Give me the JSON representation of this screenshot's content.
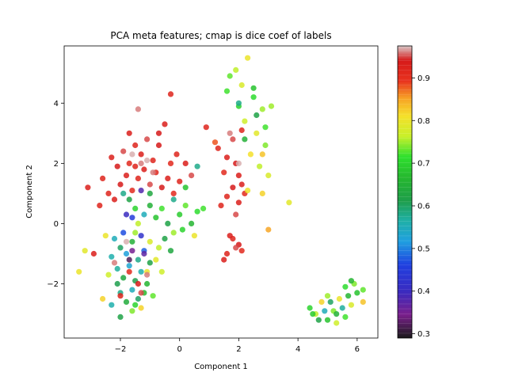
{
  "chart_data": {
    "type": "scatter",
    "title": "PCA meta features; cmap is dice coef of labels",
    "xlabel": "Component 1",
    "ylabel": "Component 2",
    "xlim": [
      -3.9,
      6.7
    ],
    "ylim": [
      -3.8,
      5.9
    ],
    "xticks": [
      -2,
      0,
      2,
      4,
      6
    ],
    "yticks": [
      -2,
      0,
      2,
      4
    ],
    "colorbar": {
      "range": [
        0.29,
        0.975
      ],
      "ticks": [
        "0.3",
        "0.4",
        "0.5",
        "0.6",
        "0.7",
        "0.8",
        "0.9"
      ],
      "tick_values": [
        0.3,
        0.4,
        0.5,
        0.6,
        0.7,
        0.8,
        0.9
      ],
      "colormap": "nipy_spectral-like"
    },
    "points": [
      [
        -2.6,
        1.5,
        0.92
      ],
      [
        -2.3,
        2.2,
        0.93
      ],
      [
        -2.1,
        1.9,
        0.94
      ],
      [
        -1.9,
        2.4,
        0.95
      ],
      [
        -1.7,
        2.0,
        0.91
      ],
      [
        -1.5,
        2.6,
        0.92
      ],
      [
        -1.3,
        2.3,
        0.93
      ],
      [
        -1.1,
        2.8,
        0.95
      ],
      [
        -0.9,
        2.1,
        0.92
      ],
      [
        -0.7,
        2.6,
        0.94
      ],
      [
        -0.5,
        3.3,
        0.93
      ],
      [
        -0.3,
        2.0,
        0.91
      ],
      [
        -0.1,
        2.3,
        0.92
      ],
      [
        0.2,
        2.0,
        0.93
      ],
      [
        0.4,
        1.6,
        0.95
      ],
      [
        -2.4,
        1.0,
        0.92
      ],
      [
        -2.0,
        1.3,
        0.94
      ],
      [
        -1.8,
        1.6,
        0.93
      ],
      [
        -1.6,
        1.1,
        0.91
      ],
      [
        -1.4,
        1.5,
        0.92
      ],
      [
        -1.2,
        1.8,
        0.93
      ],
      [
        -1.0,
        1.3,
        0.95
      ],
      [
        -0.8,
        1.7,
        0.92
      ],
      [
        -0.6,
        1.2,
        0.94
      ],
      [
        -0.4,
        1.5,
        0.93
      ],
      [
        -0.2,
        1.0,
        0.91
      ],
      [
        0.0,
        1.4,
        0.92
      ],
      [
        -2.7,
        0.6,
        0.92
      ],
      [
        -2.2,
        0.8,
        0.93
      ],
      [
        -1.5,
        1.9,
        0.92
      ],
      [
        -1.3,
        2.0,
        0.96
      ],
      [
        -1.1,
        2.1,
        0.97
      ],
      [
        -0.9,
        1.7,
        0.96
      ],
      [
        -1.6,
        2.3,
        0.97
      ],
      [
        -0.3,
        4.3,
        0.92
      ],
      [
        -1.4,
        3.8,
        0.96
      ],
      [
        -0.7,
        3.0,
        0.94
      ],
      [
        -1.7,
        3.0,
        0.93
      ],
      [
        0.9,
        3.2,
        0.92
      ],
      [
        -3.1,
        1.2,
        0.93
      ],
      [
        -1.9,
        1.0,
        0.58
      ],
      [
        -1.7,
        0.8,
        0.62
      ],
      [
        -1.5,
        0.5,
        0.7
      ],
      [
        -1.2,
        0.3,
        0.55
      ],
      [
        -1.0,
        0.6,
        0.65
      ],
      [
        -0.8,
        0.2,
        0.68
      ],
      [
        -0.6,
        0.5,
        0.72
      ],
      [
        -0.4,
        0.0,
        0.62
      ],
      [
        -0.2,
        0.8,
        0.58
      ],
      [
        0.0,
        0.3,
        0.69
      ],
      [
        0.2,
        0.6,
        0.73
      ],
      [
        0.4,
        0.0,
        0.66
      ],
      [
        0.6,
        0.4,
        0.71
      ],
      [
        -1.6,
        0.2,
        0.45
      ],
      [
        -1.3,
        1.1,
        0.38
      ],
      [
        -1.4,
        0.0,
        0.76
      ],
      [
        -1.8,
        0.3,
        0.4
      ],
      [
        -0.5,
        -0.5,
        0.62
      ],
      [
        -0.2,
        -0.3,
        0.75
      ],
      [
        0.1,
        -0.2,
        0.7
      ],
      [
        0.5,
        -0.4,
        0.8
      ],
      [
        0.2,
        1.2,
        0.68
      ],
      [
        0.8,
        0.5,
        0.72
      ],
      [
        -1.0,
        1.0,
        0.63
      ],
      [
        0.6,
        1.9,
        0.58
      ],
      [
        -2.2,
        -0.5,
        0.55
      ],
      [
        -2.0,
        -0.8,
        0.6
      ],
      [
        -1.8,
        -1.0,
        0.52
      ],
      [
        -1.6,
        -0.6,
        0.65
      ],
      [
        -1.4,
        -1.2,
        0.58
      ],
      [
        -1.2,
        -0.9,
        0.48
      ],
      [
        -1.0,
        -1.3,
        0.62
      ],
      [
        -2.1,
        -1.5,
        0.57
      ],
      [
        -1.9,
        -1.8,
        0.63
      ],
      [
        -1.7,
        -1.4,
        0.53
      ],
      [
        -1.5,
        -1.9,
        0.61
      ],
      [
        -1.3,
        -1.6,
        0.56
      ],
      [
        -1.1,
        -2.0,
        0.66
      ],
      [
        -2.0,
        -2.3,
        0.58
      ],
      [
        -1.8,
        -2.6,
        0.64
      ],
      [
        -1.6,
        -2.2,
        0.55
      ],
      [
        -1.4,
        -2.5,
        0.6
      ],
      [
        -1.2,
        -2.3,
        0.67
      ],
      [
        -1.9,
        -0.3,
        0.47
      ],
      [
        -1.6,
        -0.9,
        0.35
      ],
      [
        -1.3,
        -0.4,
        0.42
      ],
      [
        -2.3,
        -1.1,
        0.56
      ],
      [
        -2.1,
        -2.0,
        0.61
      ],
      [
        -1.5,
        -2.7,
        0.7
      ],
      [
        -1.2,
        -1.0,
        0.37
      ],
      [
        -1.7,
        -1.2,
        0.32
      ],
      [
        -1.5,
        -0.3,
        0.75
      ],
      [
        -1.0,
        -0.6,
        0.78
      ],
      [
        -1.1,
        -1.6,
        0.8
      ],
      [
        -0.8,
        -1.2,
        0.79
      ],
      [
        -2.4,
        -1.7,
        0.77
      ],
      [
        -1.3,
        -2.8,
        0.82
      ],
      [
        -0.7,
        -0.8,
        0.76
      ],
      [
        -2.0,
        -2.4,
        0.92
      ],
      [
        -1.7,
        -1.6,
        0.91
      ],
      [
        -1.4,
        -2.0,
        0.94
      ],
      [
        -2.2,
        -1.3,
        0.96
      ],
      [
        -1.8,
        -0.6,
        0.97
      ],
      [
        -1.3,
        -2.3,
        0.95
      ],
      [
        -1.1,
        -1.7,
        0.96
      ],
      [
        -2.9,
        -1.0,
        0.93
      ],
      [
        -2.5,
        -0.4,
        0.8
      ],
      [
        -3.4,
        -1.6,
        0.8
      ],
      [
        -2.6,
        -2.5,
        0.82
      ],
      [
        -2.0,
        -3.1,
        0.62
      ],
      [
        -2.3,
        -2.7,
        0.56
      ],
      [
        -1.6,
        -2.9,
        0.74
      ],
      [
        -0.9,
        -2.4,
        0.73
      ],
      [
        -0.6,
        -1.6,
        0.77
      ],
      [
        -3.2,
        -0.9,
        0.79
      ],
      [
        -0.3,
        -0.9,
        0.63
      ],
      [
        1.3,
        2.5,
        0.92
      ],
      [
        1.6,
        2.2,
        0.93
      ],
      [
        1.8,
        2.8,
        0.95
      ],
      [
        1.5,
        1.7,
        0.91
      ],
      [
        1.9,
        2.0,
        0.94
      ],
      [
        2.1,
        3.1,
        0.92
      ],
      [
        1.7,
        3.0,
        0.96
      ],
      [
        2.0,
        1.6,
        0.93
      ],
      [
        1.6,
        0.9,
        0.92
      ],
      [
        1.8,
        1.2,
        0.94
      ],
      [
        2.0,
        0.7,
        0.93
      ],
      [
        2.2,
        1.0,
        0.91
      ],
      [
        1.4,
        0.6,
        0.92
      ],
      [
        1.9,
        0.3,
        0.95
      ],
      [
        2.1,
        1.3,
        0.93
      ],
      [
        1.8,
        -0.5,
        0.92
      ],
      [
        2.0,
        -0.7,
        0.94
      ],
      [
        1.7,
        -0.4,
        0.93
      ],
      [
        2.1,
        -0.9,
        0.91
      ],
      [
        1.6,
        -1.0,
        0.92
      ],
      [
        1.9,
        -0.8,
        0.95
      ],
      [
        1.5,
        -1.2,
        0.93
      ],
      [
        1.2,
        2.7,
        0.88
      ],
      [
        2.0,
        2.0,
        0.97
      ],
      [
        1.9,
        5.1,
        0.76
      ],
      [
        2.1,
        4.6,
        0.78
      ],
      [
        2.3,
        5.5,
        0.8
      ],
      [
        1.7,
        4.9,
        0.73
      ],
      [
        2.5,
        4.2,
        0.71
      ],
      [
        2.8,
        3.8,
        0.75
      ],
      [
        2.2,
        3.4,
        0.77
      ],
      [
        2.6,
        3.0,
        0.79
      ],
      [
        2.9,
        2.6,
        0.74
      ],
      [
        2.4,
        2.3,
        0.81
      ],
      [
        2.7,
        1.9,
        0.76
      ],
      [
        2.0,
        3.9,
        0.7
      ],
      [
        2.9,
        3.2,
        0.72
      ],
      [
        3.1,
        3.9,
        0.75
      ],
      [
        2.5,
        4.5,
        0.68
      ],
      [
        3.0,
        1.6,
        0.78
      ],
      [
        2.3,
        1.1,
        0.8
      ],
      [
        2.8,
        1.0,
        0.82
      ],
      [
        3.0,
        -0.2,
        0.85
      ],
      [
        3.7,
        0.7,
        0.79
      ],
      [
        2.6,
        3.6,
        0.62
      ],
      [
        2.2,
        2.8,
        0.65
      ],
      [
        2.0,
        4.0,
        0.58
      ],
      [
        1.6,
        4.4,
        0.72
      ],
      [
        2.8,
        2.3,
        0.83
      ],
      [
        4.4,
        -2.8,
        0.7
      ],
      [
        4.6,
        -3.0,
        0.76
      ],
      [
        4.8,
        -2.6,
        0.82
      ],
      [
        5.0,
        -3.2,
        0.68
      ],
      [
        5.2,
        -2.9,
        0.74
      ],
      [
        5.4,
        -2.5,
        0.8
      ],
      [
        5.6,
        -3.1,
        0.72
      ],
      [
        5.8,
        -2.7,
        0.78
      ],
      [
        4.9,
        -2.9,
        0.55
      ],
      [
        5.1,
        -2.6,
        0.6
      ],
      [
        5.3,
        -3.0,
        0.65
      ],
      [
        5.5,
        -2.8,
        0.57
      ],
      [
        5.7,
        -2.4,
        0.66
      ],
      [
        5.0,
        -2.4,
        0.75
      ],
      [
        5.6,
        -2.1,
        0.71
      ],
      [
        6.0,
        -2.3,
        0.68
      ],
      [
        5.9,
        -2.0,
        0.74
      ],
      [
        6.2,
        -2.2,
        0.73
      ],
      [
        4.7,
        -3.2,
        0.62
      ],
      [
        5.3,
        -3.3,
        0.77
      ],
      [
        6.2,
        -2.6,
        0.83
      ],
      [
        5.8,
        -1.9,
        0.66
      ],
      [
        4.5,
        -3.0,
        0.69
      ]
    ]
  }
}
